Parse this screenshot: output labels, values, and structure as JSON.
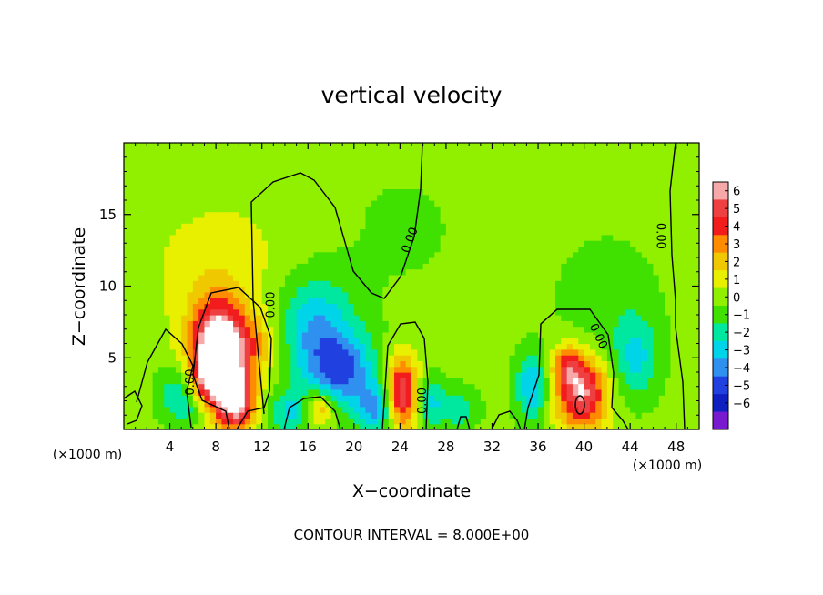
{
  "chart_data": {
    "type": "heatmap",
    "title": "vertical velocity",
    "xlabel": "X−coordinate",
    "ylabel": "Z−coordinate",
    "x_unit_left": "(×1000 m)",
    "x_unit_right": "(×1000 m)",
    "footer": "CONTOUR INTERVAL = 8.000E+00",
    "xlim": [
      0,
      50
    ],
    "ylim": [
      0,
      20
    ],
    "x_ticks": [
      4,
      8,
      12,
      16,
      20,
      24,
      28,
      32,
      36,
      40,
      44,
      48
    ],
    "x_tick_labels": [
      "4",
      "8",
      "12",
      "16",
      "20",
      "24",
      "28",
      "32",
      "36",
      "40",
      "44",
      "48"
    ],
    "y_ticks": [
      5,
      10,
      15
    ],
    "y_tick_labels": [
      "5",
      "10",
      "15"
    ],
    "colorbar": {
      "levels": [
        6,
        5,
        4,
        3,
        2,
        1,
        0,
        -1,
        -2,
        -3,
        -4,
        -5,
        -6
      ],
      "labels": [
        "6",
        "5",
        "4",
        "3",
        "2",
        "1",
        "0",
        "−1",
        "−2",
        "−3",
        "−4",
        "−5",
        "−6"
      ],
      "colors": [
        "#f7a8a8",
        "#ee4040",
        "#f21c1c",
        "#ff8c00",
        "#f0c800",
        "#e8f000",
        "#90f000",
        "#40e000",
        "#00e8a0",
        "#00d4e8",
        "#3090f0",
        "#2040e0",
        "#1020c0",
        "#7a1ad0"
      ]
    },
    "contour_label": "0.00",
    "blobs": [
      {
        "x": 8.0,
        "z": 5.5,
        "sx": 1.6,
        "sz": 2.6,
        "w": 6.5
      },
      {
        "x": 9.8,
        "z": 2.0,
        "sx": 1.2,
        "sz": 1.6,
        "w": 6.0
      },
      {
        "x": 7.5,
        "z": 3.5,
        "sx": 1.0,
        "sz": 1.2,
        "w": 3.0
      },
      {
        "x": 10.5,
        "z": 6.0,
        "sx": 2.2,
        "sz": 1.6,
        "w": 3.0
      },
      {
        "x": 8.5,
        "z": 11.0,
        "sx": 5.0,
        "sz": 4.0,
        "w": 1.2
      },
      {
        "x": 17.0,
        "z": 1.5,
        "sx": 0.9,
        "sz": 0.9,
        "w": 3.5
      },
      {
        "x": 24.2,
        "z": 2.5,
        "sx": 1.0,
        "sz": 1.8,
        "w": 6.0
      },
      {
        "x": 39.8,
        "z": 2.5,
        "sx": 1.6,
        "sz": 1.8,
        "w": 6.0
      },
      {
        "x": 38.5,
        "z": 4.5,
        "sx": 1.0,
        "sz": 1.0,
        "w": 3.0
      },
      {
        "x": 16.5,
        "z": 7.0,
        "sx": 2.5,
        "sz": 2.6,
        "w": -3.5
      },
      {
        "x": 19.0,
        "z": 4.0,
        "sx": 2.0,
        "sz": 1.8,
        "w": -4.0
      },
      {
        "x": 22.0,
        "z": 1.5,
        "sx": 1.2,
        "sz": 1.2,
        "w": -3.5
      },
      {
        "x": 14.5,
        "z": 1.2,
        "sx": 1.4,
        "sz": 1.0,
        "w": -2.5
      },
      {
        "x": 26.5,
        "z": 2.0,
        "sx": 0.9,
        "sz": 1.2,
        "w": -2.5
      },
      {
        "x": 29.0,
        "z": 1.5,
        "sx": 1.2,
        "sz": 1.0,
        "w": -2.0
      },
      {
        "x": 35.5,
        "z": 3.0,
        "sx": 1.0,
        "sz": 1.6,
        "w": -3.5
      },
      {
        "x": 44.5,
        "z": 5.0,
        "sx": 1.4,
        "sz": 2.0,
        "w": -2.5
      },
      {
        "x": 4.5,
        "z": 2.5,
        "sx": 1.2,
        "sz": 1.4,
        "w": -2.0
      },
      {
        "x": 6.0,
        "z": 1.5,
        "sx": 1.0,
        "sz": 1.0,
        "w": -1.5
      },
      {
        "x": 42.0,
        "z": 9.0,
        "sx": 3.0,
        "sz": 3.0,
        "w": -0.9
      },
      {
        "x": 24.0,
        "z": 14.0,
        "sx": 5.0,
        "sz": 4.0,
        "w": -0.4
      }
    ]
  }
}
